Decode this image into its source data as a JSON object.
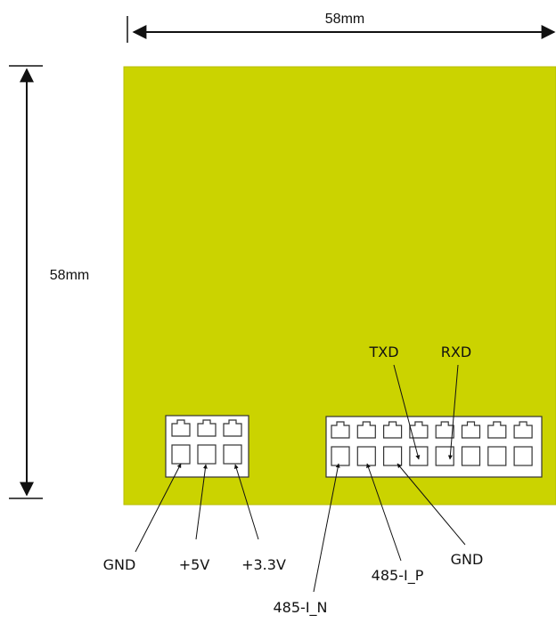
{
  "dimensions": {
    "width_label": "58mm",
    "height_label": "58mm"
  },
  "colors": {
    "board": "#cbd300",
    "board_edge": "#b7be00",
    "connector_body": "#ffffff",
    "line": "#111111"
  },
  "pin_labels": {
    "gnd_left": "GND",
    "v5": "+5V",
    "v33": "+3.3V",
    "txd": "TXD",
    "rxd": "RXD",
    "rs485_n": "485-I_N",
    "rs485_p": "485-I_P",
    "gnd_right": "GND"
  },
  "connectors": {
    "small": {
      "columns": 3,
      "rows": 2
    },
    "large": {
      "columns": 8,
      "rows": 2
    }
  }
}
